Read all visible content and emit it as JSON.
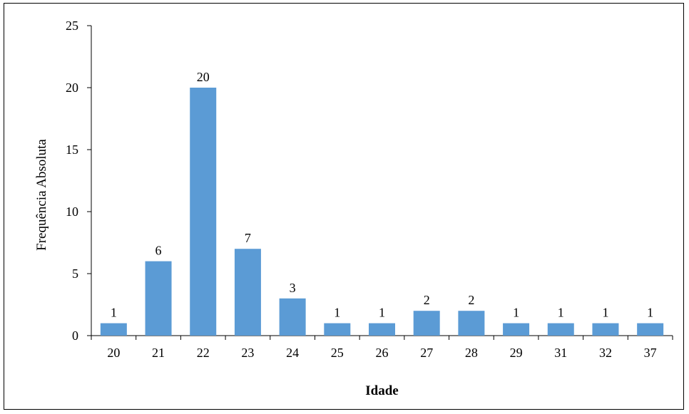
{
  "chart_data": {
    "type": "bar",
    "title": "",
    "xlabel": "Idade",
    "ylabel": "Frequência Absoluta",
    "categories": [
      "20",
      "21",
      "22",
      "23",
      "24",
      "25",
      "26",
      "27",
      "28",
      "29",
      "31",
      "32",
      "37"
    ],
    "values": [
      1,
      6,
      20,
      7,
      3,
      1,
      1,
      2,
      2,
      1,
      1,
      1,
      1
    ],
    "ylim": [
      0,
      25
    ],
    "yticks": [
      0,
      5,
      10,
      15,
      20,
      25
    ],
    "grid": false,
    "legend": "none",
    "data_labels": true,
    "colors": {
      "bar": "#5B9BD5",
      "axis": "#000000",
      "border": "#000000"
    }
  }
}
